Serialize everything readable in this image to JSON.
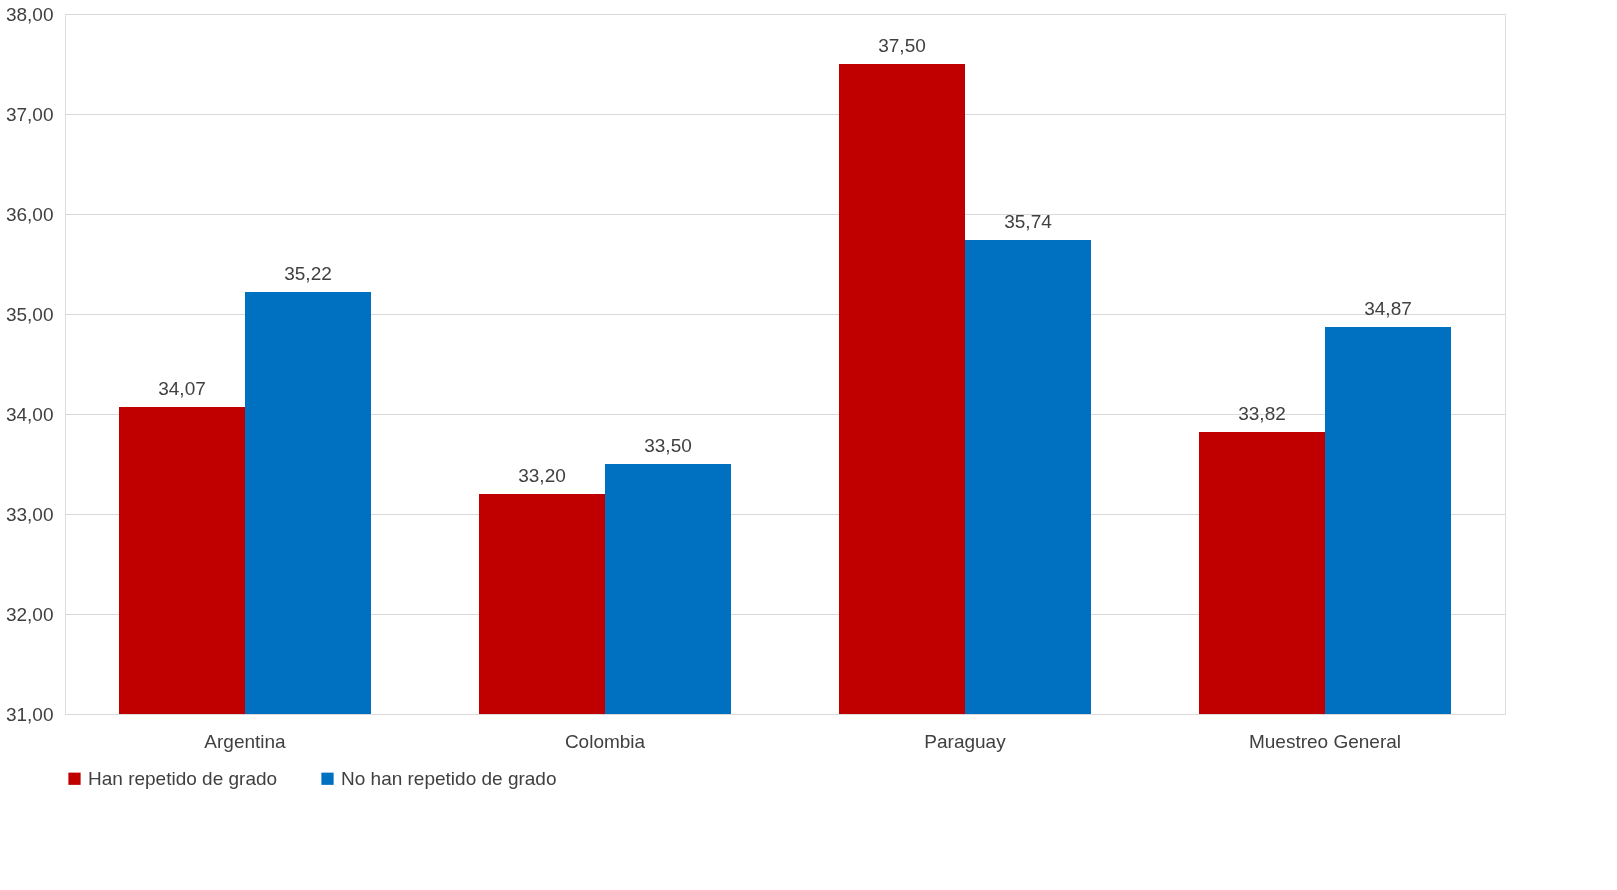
{
  "chart_data": {
    "type": "bar",
    "categories": [
      "Argentina",
      "Colombia",
      "Paraguay",
      "Muestreo General"
    ],
    "series": [
      {
        "name": "Han repetido de grado",
        "color": "#c00000",
        "values": [
          34.07,
          33.2,
          37.5,
          33.82
        ],
        "value_labels": [
          "34,07",
          "33,20",
          "37,50",
          "33,82"
        ]
      },
      {
        "name": "No han repetido de grado",
        "color": "#0070c0",
        "values": [
          35.22,
          33.5,
          35.74,
          34.87
        ],
        "value_labels": [
          "35,22",
          "33,50",
          "35,74",
          "34,87"
        ]
      }
    ],
    "ylim": [
      31,
      38
    ],
    "yticks": [
      {
        "value": 31,
        "label": "31,00"
      },
      {
        "value": 32,
        "label": "32,00"
      },
      {
        "value": 33,
        "label": "33,00"
      },
      {
        "value": 34,
        "label": "34,00"
      },
      {
        "value": 35,
        "label": "35,00"
      },
      {
        "value": 36,
        "label": "36,00"
      },
      {
        "value": 37,
        "label": "37,00"
      },
      {
        "value": 38,
        "label": "38,00"
      }
    ],
    "grid": "y",
    "legend": "bottom"
  }
}
